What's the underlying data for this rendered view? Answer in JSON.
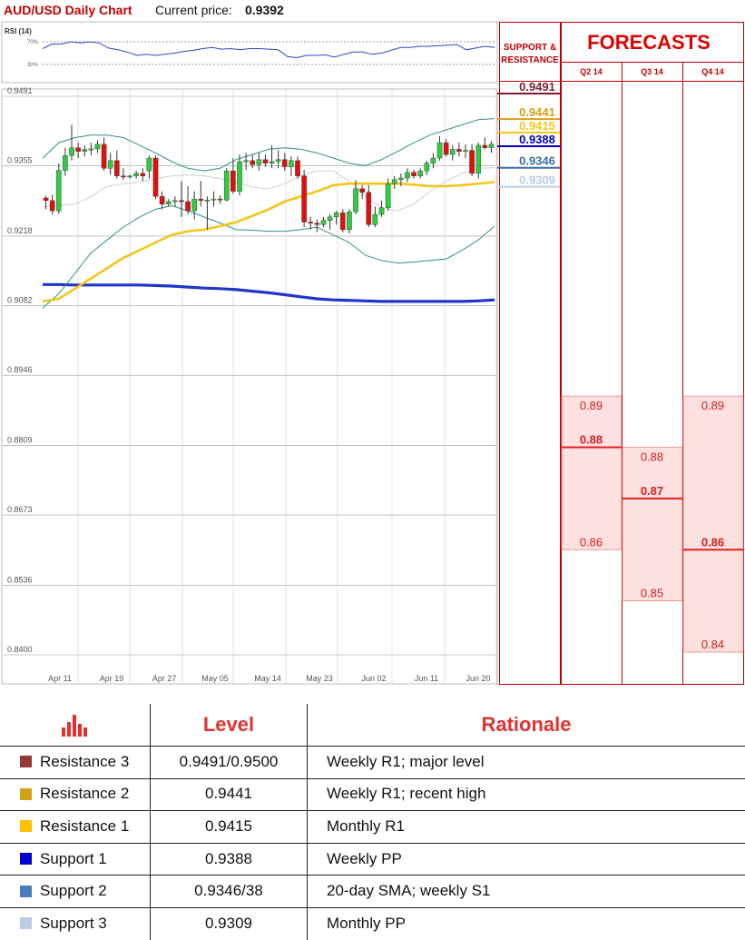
{
  "header": {
    "title": "AUD/USD Daily Chart",
    "price_label": "Current price:",
    "price": "0.9392"
  },
  "rsi": {
    "label": "RSI (14)",
    "upper": "70%",
    "lower": "30%"
  },
  "chart_data": [
    {
      "type": "candlestick",
      "ylim": [
        0.84,
        0.9491
      ],
      "y_ticks": [
        "0.9491",
        "0.9355",
        "0.9218",
        "0.9082",
        "0.8946",
        "0.8809",
        "0.8673",
        "0.8536",
        "0.8400"
      ],
      "x_ticks": [
        "Apr 11",
        "Apr 19",
        "Apr 27",
        "May 05",
        "May 14",
        "May 23",
        "Jun 02",
        "Jun 11",
        "Jun 20"
      ],
      "candles": [
        [
          0.9287,
          0.9291,
          0.9265,
          0.9282
        ],
        [
          0.9282,
          0.9293,
          0.9255,
          0.9262
        ],
        [
          0.9262,
          0.9355,
          0.9256,
          0.9341
        ],
        [
          0.9341,
          0.9385,
          0.933,
          0.937
        ],
        [
          0.937,
          0.943,
          0.936,
          0.9385
        ],
        [
          0.9385,
          0.9395,
          0.9365,
          0.9378
        ],
        [
          0.9378,
          0.939,
          0.9368,
          0.9382
        ],
        [
          0.9382,
          0.9395,
          0.937,
          0.9383
        ],
        [
          0.9383,
          0.94,
          0.9375,
          0.9392
        ],
        [
          0.9392,
          0.9405,
          0.934,
          0.9345
        ],
        [
          0.9345,
          0.9375,
          0.9332,
          0.936
        ],
        [
          0.936,
          0.938,
          0.9325,
          0.933
        ],
        [
          0.933,
          0.9345,
          0.9322,
          0.9328
        ],
        [
          0.9328,
          0.9332,
          0.9325,
          0.933
        ],
        [
          0.933,
          0.934,
          0.9325,
          0.9335
        ],
        [
          0.9335,
          0.9345,
          0.932,
          0.933
        ],
        [
          0.934,
          0.937,
          0.9325,
          0.9365
        ],
        [
          0.9365,
          0.937,
          0.9285,
          0.929
        ],
        [
          0.929,
          0.93,
          0.9265,
          0.9275
        ],
        [
          0.9275,
          0.9285,
          0.927,
          0.928
        ],
        [
          0.928,
          0.929,
          0.927,
          0.9282
        ],
        [
          0.9282,
          0.932,
          0.925,
          0.928
        ],
        [
          0.928,
          0.931,
          0.9255,
          0.9262
        ],
        [
          0.9262,
          0.93,
          0.9245,
          0.9285
        ],
        [
          0.9285,
          0.932,
          0.927,
          0.9282
        ],
        [
          0.9282,
          0.929,
          0.9225,
          0.9283
        ],
        [
          0.9283,
          0.93,
          0.927,
          0.9285
        ],
        [
          0.9285,
          0.9292,
          0.9275,
          0.9283
        ],
        [
          0.9283,
          0.9345,
          0.928,
          0.934
        ],
        [
          0.934,
          0.9365,
          0.9295,
          0.93
        ],
        [
          0.93,
          0.9372,
          0.9292,
          0.9358
        ],
        [
          0.9358,
          0.9375,
          0.9342,
          0.936
        ],
        [
          0.936,
          0.9372,
          0.9345,
          0.9352
        ],
        [
          0.9352,
          0.9375,
          0.934,
          0.9362
        ],
        [
          0.9362,
          0.9372,
          0.9348,
          0.9355
        ],
        [
          0.9355,
          0.939,
          0.9345,
          0.9358
        ],
        [
          0.9358,
          0.938,
          0.9345,
          0.9362
        ],
        [
          0.9362,
          0.9375,
          0.934,
          0.9348
        ],
        [
          0.9348,
          0.9368,
          0.933,
          0.936
        ],
        [
          0.936,
          0.9368,
          0.9325,
          0.933
        ],
        [
          0.933,
          0.9342,
          0.923,
          0.924
        ],
        [
          0.924,
          0.925,
          0.9225,
          0.9238
        ],
        [
          0.9238,
          0.9245,
          0.922,
          0.9235
        ],
        [
          0.9235,
          0.925,
          0.923,
          0.9243
        ],
        [
          0.9243,
          0.9255,
          0.9225,
          0.925
        ],
        [
          0.925,
          0.9262,
          0.9235,
          0.9258
        ],
        [
          0.9258,
          0.9265,
          0.922,
          0.9225
        ],
        [
          0.9225,
          0.9265,
          0.9218,
          0.926
        ],
        [
          0.926,
          0.9322,
          0.9255,
          0.9305
        ],
        [
          0.9305,
          0.9312,
          0.9285,
          0.9298
        ],
        [
          0.9298,
          0.9312,
          0.923,
          0.9235
        ],
        [
          0.9235,
          0.927,
          0.923,
          0.9255
        ],
        [
          0.9255,
          0.9282,
          0.925,
          0.9268
        ],
        [
          0.9268,
          0.9325,
          0.9262,
          0.9315
        ],
        [
          0.9315,
          0.933,
          0.9305,
          0.9323
        ],
        [
          0.9323,
          0.9335,
          0.931,
          0.9326
        ],
        [
          0.9326,
          0.9345,
          0.9318,
          0.9337
        ],
        [
          0.9337,
          0.9342,
          0.9325,
          0.933
        ],
        [
          0.933,
          0.9345,
          0.9325,
          0.934
        ],
        [
          0.934,
          0.936,
          0.9332,
          0.9355
        ],
        [
          0.9355,
          0.9375,
          0.9345,
          0.9365
        ],
        [
          0.9365,
          0.9408,
          0.936,
          0.9395
        ],
        [
          0.9395,
          0.9402,
          0.9368,
          0.9372
        ],
        [
          0.9372,
          0.939,
          0.936,
          0.9382
        ],
        [
          0.9382,
          0.9395,
          0.9368,
          0.9378
        ],
        [
          0.9378,
          0.9392,
          0.9365,
          0.938
        ],
        [
          0.938,
          0.9392,
          0.933,
          0.9335
        ],
        [
          0.9335,
          0.9395,
          0.9325,
          0.939
        ],
        [
          0.939,
          0.9405,
          0.9382,
          0.9385
        ],
        [
          0.9385,
          0.9398,
          0.9375,
          0.9392
        ]
      ],
      "sma20": [
        0.927,
        0.9272,
        0.9275,
        0.929,
        0.931,
        0.9315,
        0.9318,
        0.9325,
        0.933,
        0.9332,
        0.933,
        0.9325,
        0.9318,
        0.9308,
        0.9305,
        0.9315,
        0.933,
        0.934,
        0.934,
        0.932,
        0.929,
        0.9268,
        0.9262,
        0.9275,
        0.93,
        0.932,
        0.9335,
        0.9345,
        0.9346
      ],
      "upper_band": [
        0.9365,
        0.9395,
        0.9405,
        0.941,
        0.941,
        0.9405,
        0.939,
        0.9375,
        0.9358,
        0.9345,
        0.934,
        0.9345,
        0.9362,
        0.9372,
        0.9382,
        0.9385,
        0.9382,
        0.9375,
        0.9365,
        0.9355,
        0.935,
        0.9362,
        0.9378,
        0.9395,
        0.941,
        0.942,
        0.943,
        0.944,
        0.9442
      ],
      "lower_band": [
        0.9072,
        0.91,
        0.914,
        0.918,
        0.9205,
        0.923,
        0.925,
        0.9265,
        0.9272,
        0.9262,
        0.925,
        0.9238,
        0.9225,
        0.9224,
        0.9222,
        0.9222,
        0.9225,
        0.923,
        0.9215,
        0.92,
        0.9175,
        0.9165,
        0.916,
        0.9162,
        0.9165,
        0.9168,
        0.9185,
        0.9205,
        0.9232
      ],
      "ma_slow": [
        0.9085,
        0.909,
        0.911,
        0.913,
        0.915,
        0.917,
        0.9185,
        0.92,
        0.9215,
        0.9222,
        0.9225,
        0.9232,
        0.924,
        0.9252,
        0.9265,
        0.928,
        0.929,
        0.93,
        0.9312,
        0.9315,
        0.9315,
        0.9315,
        0.9315,
        0.9313,
        0.931,
        0.931,
        0.9312,
        0.9315,
        0.9318
      ],
      "ma_long": [
        0.9118,
        0.9118,
        0.9117,
        0.9117,
        0.9117,
        0.9117,
        0.9117,
        0.9116,
        0.9115,
        0.9113,
        0.9111,
        0.911,
        0.9108,
        0.9105,
        0.9102,
        0.9098,
        0.9094,
        0.909,
        0.9088,
        0.9087,
        0.9086,
        0.9085,
        0.9085,
        0.9085,
        0.9085,
        0.9085,
        0.9085,
        0.9086,
        0.9088
      ],
      "rsi14": [
        58,
        66,
        66,
        70,
        68,
        70,
        68,
        59,
        56,
        52,
        46,
        48,
        46,
        48,
        50,
        53,
        55,
        58,
        60,
        57,
        58,
        56,
        58,
        58,
        57,
        56,
        44,
        42,
        46,
        46,
        47,
        43,
        48,
        52,
        52,
        48,
        50,
        55,
        60,
        60,
        62,
        62,
        63,
        64,
        65,
        56,
        59,
        62,
        60
      ]
    },
    {
      "type": "bar",
      "title": "FORECASTS",
      "categories": [
        "Q2 14",
        "Q3 14",
        "Q4 14"
      ],
      "series": [
        {
          "name": "high",
          "values": [
            0.89,
            0.88,
            0.89
          ]
        },
        {
          "name": "median",
          "values": [
            0.88,
            0.87,
            0.86
          ]
        },
        {
          "name": "low",
          "values": [
            0.86,
            0.85,
            0.84
          ]
        }
      ],
      "labels": [
        {
          "high": "0.89",
          "median": "0.88",
          "low": "0.86"
        },
        {
          "high": "0.88",
          "median": "0.87",
          "low": "0.85"
        },
        {
          "high": "0.89",
          "median": "0.86",
          "low": "0.84"
        }
      ],
      "colors": {
        "fill": "#fde0e0",
        "line": "#e02020"
      }
    }
  ],
  "support_resistance": {
    "heading_line1": "SUPPORT &",
    "heading_line2": "RESISTANCE",
    "levels": [
      {
        "value": 0.9491,
        "label": "0.9491",
        "color": "#7b1f2b"
      },
      {
        "value": 0.9441,
        "label": "0.9441",
        "color": "#d4a017"
      },
      {
        "value": 0.9415,
        "label": "0.9415",
        "color": "#f5c518"
      },
      {
        "value": 0.9388,
        "label": "0.9388",
        "color": "#0000c8"
      },
      {
        "value": 0.9346,
        "label": "0.9346",
        "color": "#3a6ea5"
      },
      {
        "value": 0.9309,
        "label": "0.9309",
        "color": "#b8cce4"
      }
    ]
  },
  "table": {
    "headers": {
      "level": "Level",
      "rationale": "Rationale"
    },
    "rows": [
      {
        "name": "Resistance 3",
        "color": "#953735",
        "level": "0.9491/0.9500",
        "rationale": "Weekly R1; major level"
      },
      {
        "name": "Resistance 2",
        "color": "#d4a017",
        "level": "0.9441",
        "rationale": "Weekly R1; recent high"
      },
      {
        "name": "Resistance 1",
        "color": "#ffc000",
        "level": "0.9415",
        "rationale": "Monthly R1"
      },
      {
        "name": "Support 1",
        "color": "#0000cc",
        "level": "0.9388",
        "rationale": "Weekly PP"
      },
      {
        "name": "Support 2",
        "color": "#4a7ebb",
        "level": "0.9346/38",
        "rationale": "20-day SMA; weekly S1"
      },
      {
        "name": "Support 3",
        "color": "#b8cce4",
        "level": "0.9309",
        "rationale": "Monthly PP"
      }
    ]
  },
  "icons": {
    "table_header": "bar-chart-icon"
  },
  "colors": {
    "bull": "#2ecc40",
    "bear": "#e01010",
    "band": "#2f8f8a",
    "sma": "#d0d0d0",
    "ma_slow": "#f5c518",
    "ma_long": "#2233cc",
    "accent": "#c00000"
  }
}
